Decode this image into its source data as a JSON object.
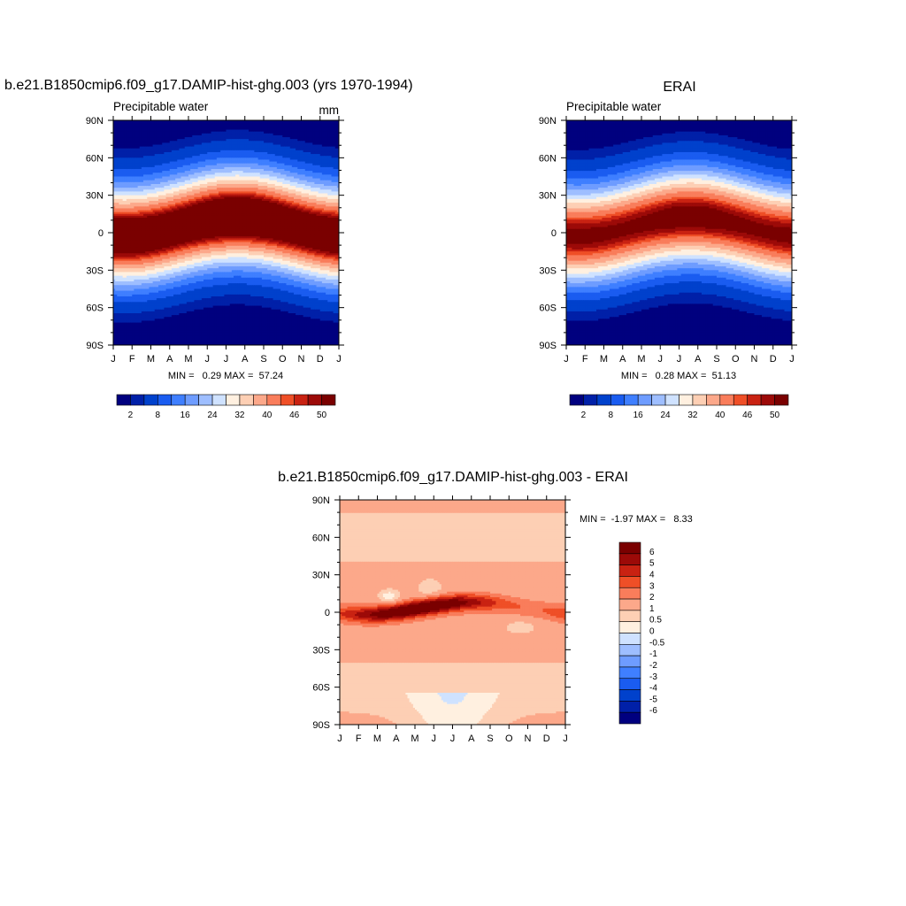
{
  "chart_data": [
    {
      "type": "heatmap",
      "title": "b.e21.B1850cmip6.f09_g17.DAMIP-hist-ghg.003 (yrs 1970-1994)",
      "subtitle": "Precipitable water",
      "units": "mm",
      "x_ticks": [
        "J",
        "F",
        "M",
        "A",
        "M",
        "J",
        "J",
        "A",
        "S",
        "O",
        "N",
        "D",
        "J"
      ],
      "y_ticks": [
        "90N",
        "60N",
        "30N",
        "0",
        "30S",
        "60S",
        "90S"
      ],
      "stats_text": "MIN =   0.29 MAX =  57.24",
      "min": 0.29,
      "max": 57.24,
      "levels": [
        2,
        4,
        8,
        12,
        16,
        20,
        24,
        28,
        32,
        36,
        40,
        44,
        46,
        48,
        50
      ],
      "colorbar_labels": [
        "2",
        "8",
        "16",
        "24",
        "32",
        "40",
        "46",
        "50"
      ],
      "colorbar_orientation": "horizontal",
      "peak": 57.24
    },
    {
      "type": "heatmap",
      "title": "ERAI",
      "subtitle": "Precipitable water",
      "units": "",
      "x_ticks": [
        "J",
        "F",
        "M",
        "A",
        "M",
        "J",
        "J",
        "A",
        "S",
        "O",
        "N",
        "D",
        "J"
      ],
      "y_ticks": [
        "90N",
        "60N",
        "30N",
        "0",
        "30S",
        "60S",
        "90S"
      ],
      "stats_text": "MIN =   0.28 MAX =  51.13",
      "min": 0.28,
      "max": 51.13,
      "levels": [
        2,
        4,
        8,
        12,
        16,
        20,
        24,
        28,
        32,
        36,
        40,
        44,
        46,
        48,
        50
      ],
      "colorbar_labels": [
        "2",
        "8",
        "16",
        "24",
        "32",
        "40",
        "46",
        "50"
      ],
      "colorbar_orientation": "horizontal",
      "peak": 51.13
    },
    {
      "type": "heatmap",
      "title": "b.e21.B1850cmip6.f09_g17.DAMIP-hist-ghg.003 - ERAI",
      "subtitle": "",
      "units": "",
      "x_ticks": [
        "J",
        "F",
        "M",
        "A",
        "M",
        "J",
        "J",
        "A",
        "S",
        "O",
        "N",
        "D",
        "J"
      ],
      "y_ticks": [
        "90N",
        "60N",
        "30N",
        "0",
        "30S",
        "60S",
        "90S"
      ],
      "stats_text": "MIN =  -1.97 MAX =   8.33",
      "min": -1.97,
      "max": 8.33,
      "levels": [
        -6,
        -5,
        -4,
        -3,
        -2,
        -1,
        -0.5,
        0,
        0.5,
        1,
        2,
        3,
        4,
        5,
        6
      ],
      "colorbar_labels": [
        "6",
        "5",
        "4",
        "3",
        "2",
        "1",
        "0.5",
        "0",
        "-0.5",
        "-1",
        "-2",
        "-3",
        "-4",
        "-5",
        "-6"
      ],
      "colorbar_orientation": "vertical"
    }
  ],
  "colors": {
    "palette": [
      "#00007f",
      "#0020a8",
      "#0041cc",
      "#1a5cf0",
      "#3f7fff",
      "#6e9cff",
      "#9ebeff",
      "#cfe2ff",
      "#fff0e0",
      "#fdcfb4",
      "#fca88a",
      "#f97d5b",
      "#ef4f27",
      "#c92212",
      "#9c0a08",
      "#7a0000"
    ]
  }
}
